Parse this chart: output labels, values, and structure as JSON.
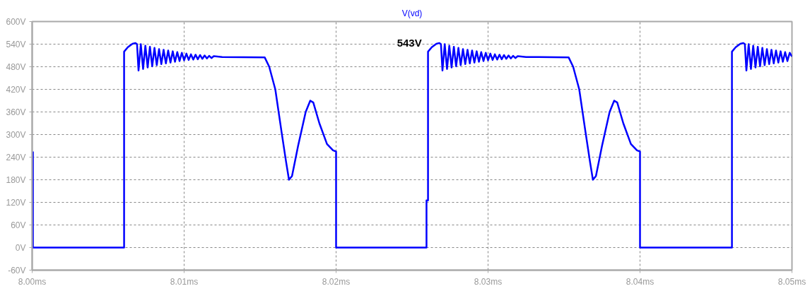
{
  "chart_data": {
    "type": "line",
    "xlim": [
      8.0,
      8.05
    ],
    "ylim": [
      -60,
      600
    ],
    "xticks": [
      {
        "value": 8.0,
        "label": "8.00ms"
      },
      {
        "value": 8.01,
        "label": "8.01ms"
      },
      {
        "value": 8.02,
        "label": "8.02ms"
      },
      {
        "value": 8.03,
        "label": "8.03ms"
      },
      {
        "value": 8.04,
        "label": "8.04ms"
      },
      {
        "value": 8.05,
        "label": "8.05ms"
      }
    ],
    "yticks": [
      {
        "value": -60,
        "label": "-60V"
      },
      {
        "value": 0,
        "label": "0V"
      },
      {
        "value": 60,
        "label": "60V"
      },
      {
        "value": 120,
        "label": "120V"
      },
      {
        "value": 180,
        "label": "180V"
      },
      {
        "value": 240,
        "label": "240V"
      },
      {
        "value": 300,
        "label": "300V"
      },
      {
        "value": 360,
        "label": "360V"
      },
      {
        "value": 420,
        "label": "420V"
      },
      {
        "value": 480,
        "label": "480V"
      },
      {
        "value": 540,
        "label": "540V"
      },
      {
        "value": 600,
        "label": "600V"
      }
    ],
    "grid": true,
    "legend": "top",
    "marker": "none",
    "line_style": "solid",
    "annotations": [
      {
        "text": "543V",
        "x": 8.0268,
        "y": 543
      }
    ],
    "series": [
      {
        "name": "V(vd)",
        "color": "#0000ff",
        "x": [
          8.00005,
          8.00005,
          8.00605,
          8.00605,
          8.0063,
          8.0066,
          8.0068,
          8.0069,
          8.007,
          8.00715,
          8.0073,
          8.00745,
          8.0076,
          8.00775,
          8.0079,
          8.00805,
          8.0082,
          8.00835,
          8.0085,
          8.00865,
          8.0088,
          8.00895,
          8.0091,
          8.00925,
          8.0094,
          8.00955,
          8.0097,
          8.00985,
          8.01,
          8.01015,
          8.0103,
          8.01045,
          8.0106,
          8.01075,
          8.0109,
          8.01105,
          8.0112,
          8.01135,
          8.0115,
          8.01165,
          8.0118,
          8.01195,
          8.0125,
          8.0153,
          8.0156,
          8.016,
          8.0164,
          8.0167,
          8.0169,
          8.0171,
          8.0175,
          8.018,
          8.0183,
          8.0185,
          8.0189,
          8.0194,
          8.0198,
          8.02,
          8.02,
          8.02595,
          8.02595,
          8.02605,
          8.02605,
          8.0263,
          8.0266,
          8.0268,
          8.0269,
          8.027,
          8.02715,
          8.0273,
          8.02745,
          8.0276,
          8.02775,
          8.0279,
          8.02805,
          8.0282,
          8.02835,
          8.0285,
          8.02865,
          8.0288,
          8.02895,
          8.0291,
          8.02925,
          8.0294,
          8.02955,
          8.0297,
          8.02985,
          8.03,
          8.03015,
          8.0303,
          8.03045,
          8.0306,
          8.03075,
          8.0309,
          8.03105,
          8.0312,
          8.03135,
          8.0315,
          8.03165,
          8.0318,
          8.03195,
          8.0325,
          8.0353,
          8.0356,
          8.036,
          8.0364,
          8.0367,
          8.0369,
          8.0371,
          8.0375,
          8.038,
          8.0383,
          8.0385,
          8.0389,
          8.0394,
          8.0398,
          8.04,
          8.04,
          8.04605,
          8.04605,
          8.0463,
          8.0466,
          8.0468,
          8.0469,
          8.047,
          8.04715,
          8.0473,
          8.04745,
          8.0476,
          8.04775,
          8.0479,
          8.04805,
          8.0482,
          8.04835,
          8.0485,
          8.04865,
          8.0488,
          8.04895,
          8.0491,
          8.04925,
          8.0494,
          8.04955,
          8.0497,
          8.04985,
          8.05
        ],
        "values": [
          255,
          0,
          0,
          520,
          532,
          541,
          543,
          540,
          470,
          540,
          474,
          536,
          478,
          533,
          481,
          530,
          484,
          527,
          487,
          525,
          489,
          523,
          491,
          521,
          493,
          519,
          495,
          517,
          497,
          515,
          498,
          513,
          499,
          512,
          500,
          511,
          501,
          510,
          502,
          509,
          503,
          508,
          506,
          505,
          480,
          420,
          310,
          230,
          180,
          190,
          270,
          360,
          390,
          385,
          330,
          275,
          258,
          255,
          0,
          0,
          125,
          125,
          520,
          532,
          541,
          543,
          540,
          470,
          540,
          474,
          536,
          478,
          533,
          481,
          530,
          484,
          527,
          487,
          525,
          489,
          523,
          491,
          521,
          493,
          519,
          495,
          517,
          497,
          515,
          498,
          513,
          499,
          512,
          500,
          511,
          501,
          510,
          502,
          509,
          503,
          508,
          506,
          505,
          480,
          420,
          310,
          230,
          180,
          190,
          270,
          360,
          390,
          385,
          330,
          275,
          258,
          255,
          0,
          0,
          520,
          532,
          541,
          543,
          540,
          470,
          540,
          474,
          536,
          478,
          533,
          481,
          530,
          484,
          527,
          487,
          525,
          489,
          523,
          491,
          521,
          493,
          519,
          495,
          517,
          507
        ]
      }
    ]
  }
}
